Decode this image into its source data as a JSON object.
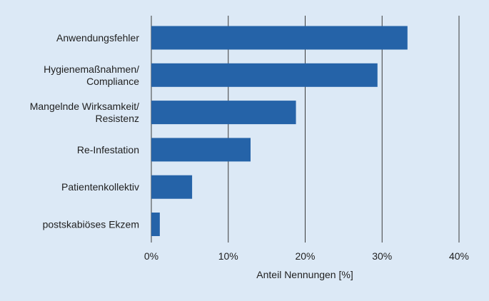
{
  "chart_data": {
    "type": "bar",
    "orientation": "horizontal",
    "categories": [
      [
        "Anwendungsfehler"
      ],
      [
        "Hygienemaßnahmen/",
        "Compliance"
      ],
      [
        "Mangelnde Wirksamkeit/",
        "Resistenz"
      ],
      [
        "Re-Infestation"
      ],
      [
        "Patientenkollektiv"
      ],
      [
        "postskabiöses Ekzem"
      ]
    ],
    "values": [
      33.3,
      29.4,
      18.8,
      12.9,
      5.3,
      1.1
    ],
    "xlabel": "Anteil Nennungen [%]",
    "ylabel": "",
    "xlim": [
      0,
      40
    ],
    "xticks": [
      0,
      10,
      20,
      30,
      40
    ],
    "xtick_labels": [
      "0%",
      "10%",
      "20%",
      "30%",
      "40%"
    ],
    "grid": "vertical",
    "bar_color": "#2563a8",
    "background_color": "#dce9f6"
  }
}
